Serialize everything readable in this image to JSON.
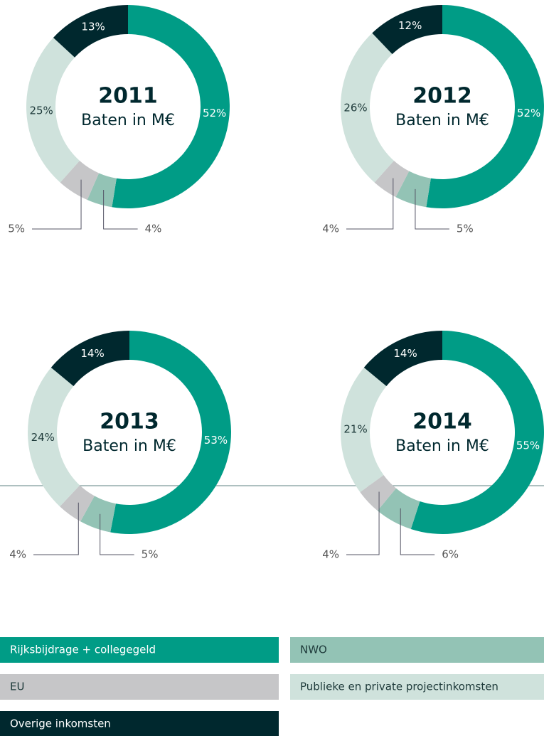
{
  "chart_data": [
    {
      "type": "pie",
      "title": "2011",
      "subtitle": "Baten in M€",
      "values": [
        52,
        4,
        5,
        25,
        13
      ],
      "value_labels": [
        "52%",
        "4%",
        "5%",
        "25%",
        "13%"
      ]
    },
    {
      "type": "pie",
      "title": "2012",
      "subtitle": "Baten in M€",
      "values": [
        52,
        5,
        4,
        26,
        12
      ],
      "value_labels": [
        "52%",
        "5%",
        "4%",
        "26%",
        "12%"
      ]
    },
    {
      "type": "pie",
      "title": "2013",
      "subtitle": "Baten in M€",
      "values": [
        53,
        5,
        4,
        24,
        14
      ],
      "value_labels": [
        "53%",
        "5%",
        "4%",
        "24%",
        "14%"
      ]
    },
    {
      "type": "pie",
      "title": "2014",
      "subtitle": "Baten in M€",
      "values": [
        55,
        6,
        4,
        21,
        14
      ],
      "value_labels": [
        "55%",
        "6%",
        "4%",
        "21%",
        "14%"
      ]
    }
  ],
  "legend": {
    "items": [
      {
        "name": "Rijksbijdrage + collegegeld",
        "color": "#009c86"
      },
      {
        "name": "NWO",
        "color": "#93c3b5"
      },
      {
        "name": "EU",
        "color": "#c6c6c8"
      },
      {
        "name": "Publieke en private projectinkomsten",
        "color": "#cfe2dc"
      },
      {
        "name": "Overige inkomsten",
        "color": "#00282e"
      }
    ]
  }
}
